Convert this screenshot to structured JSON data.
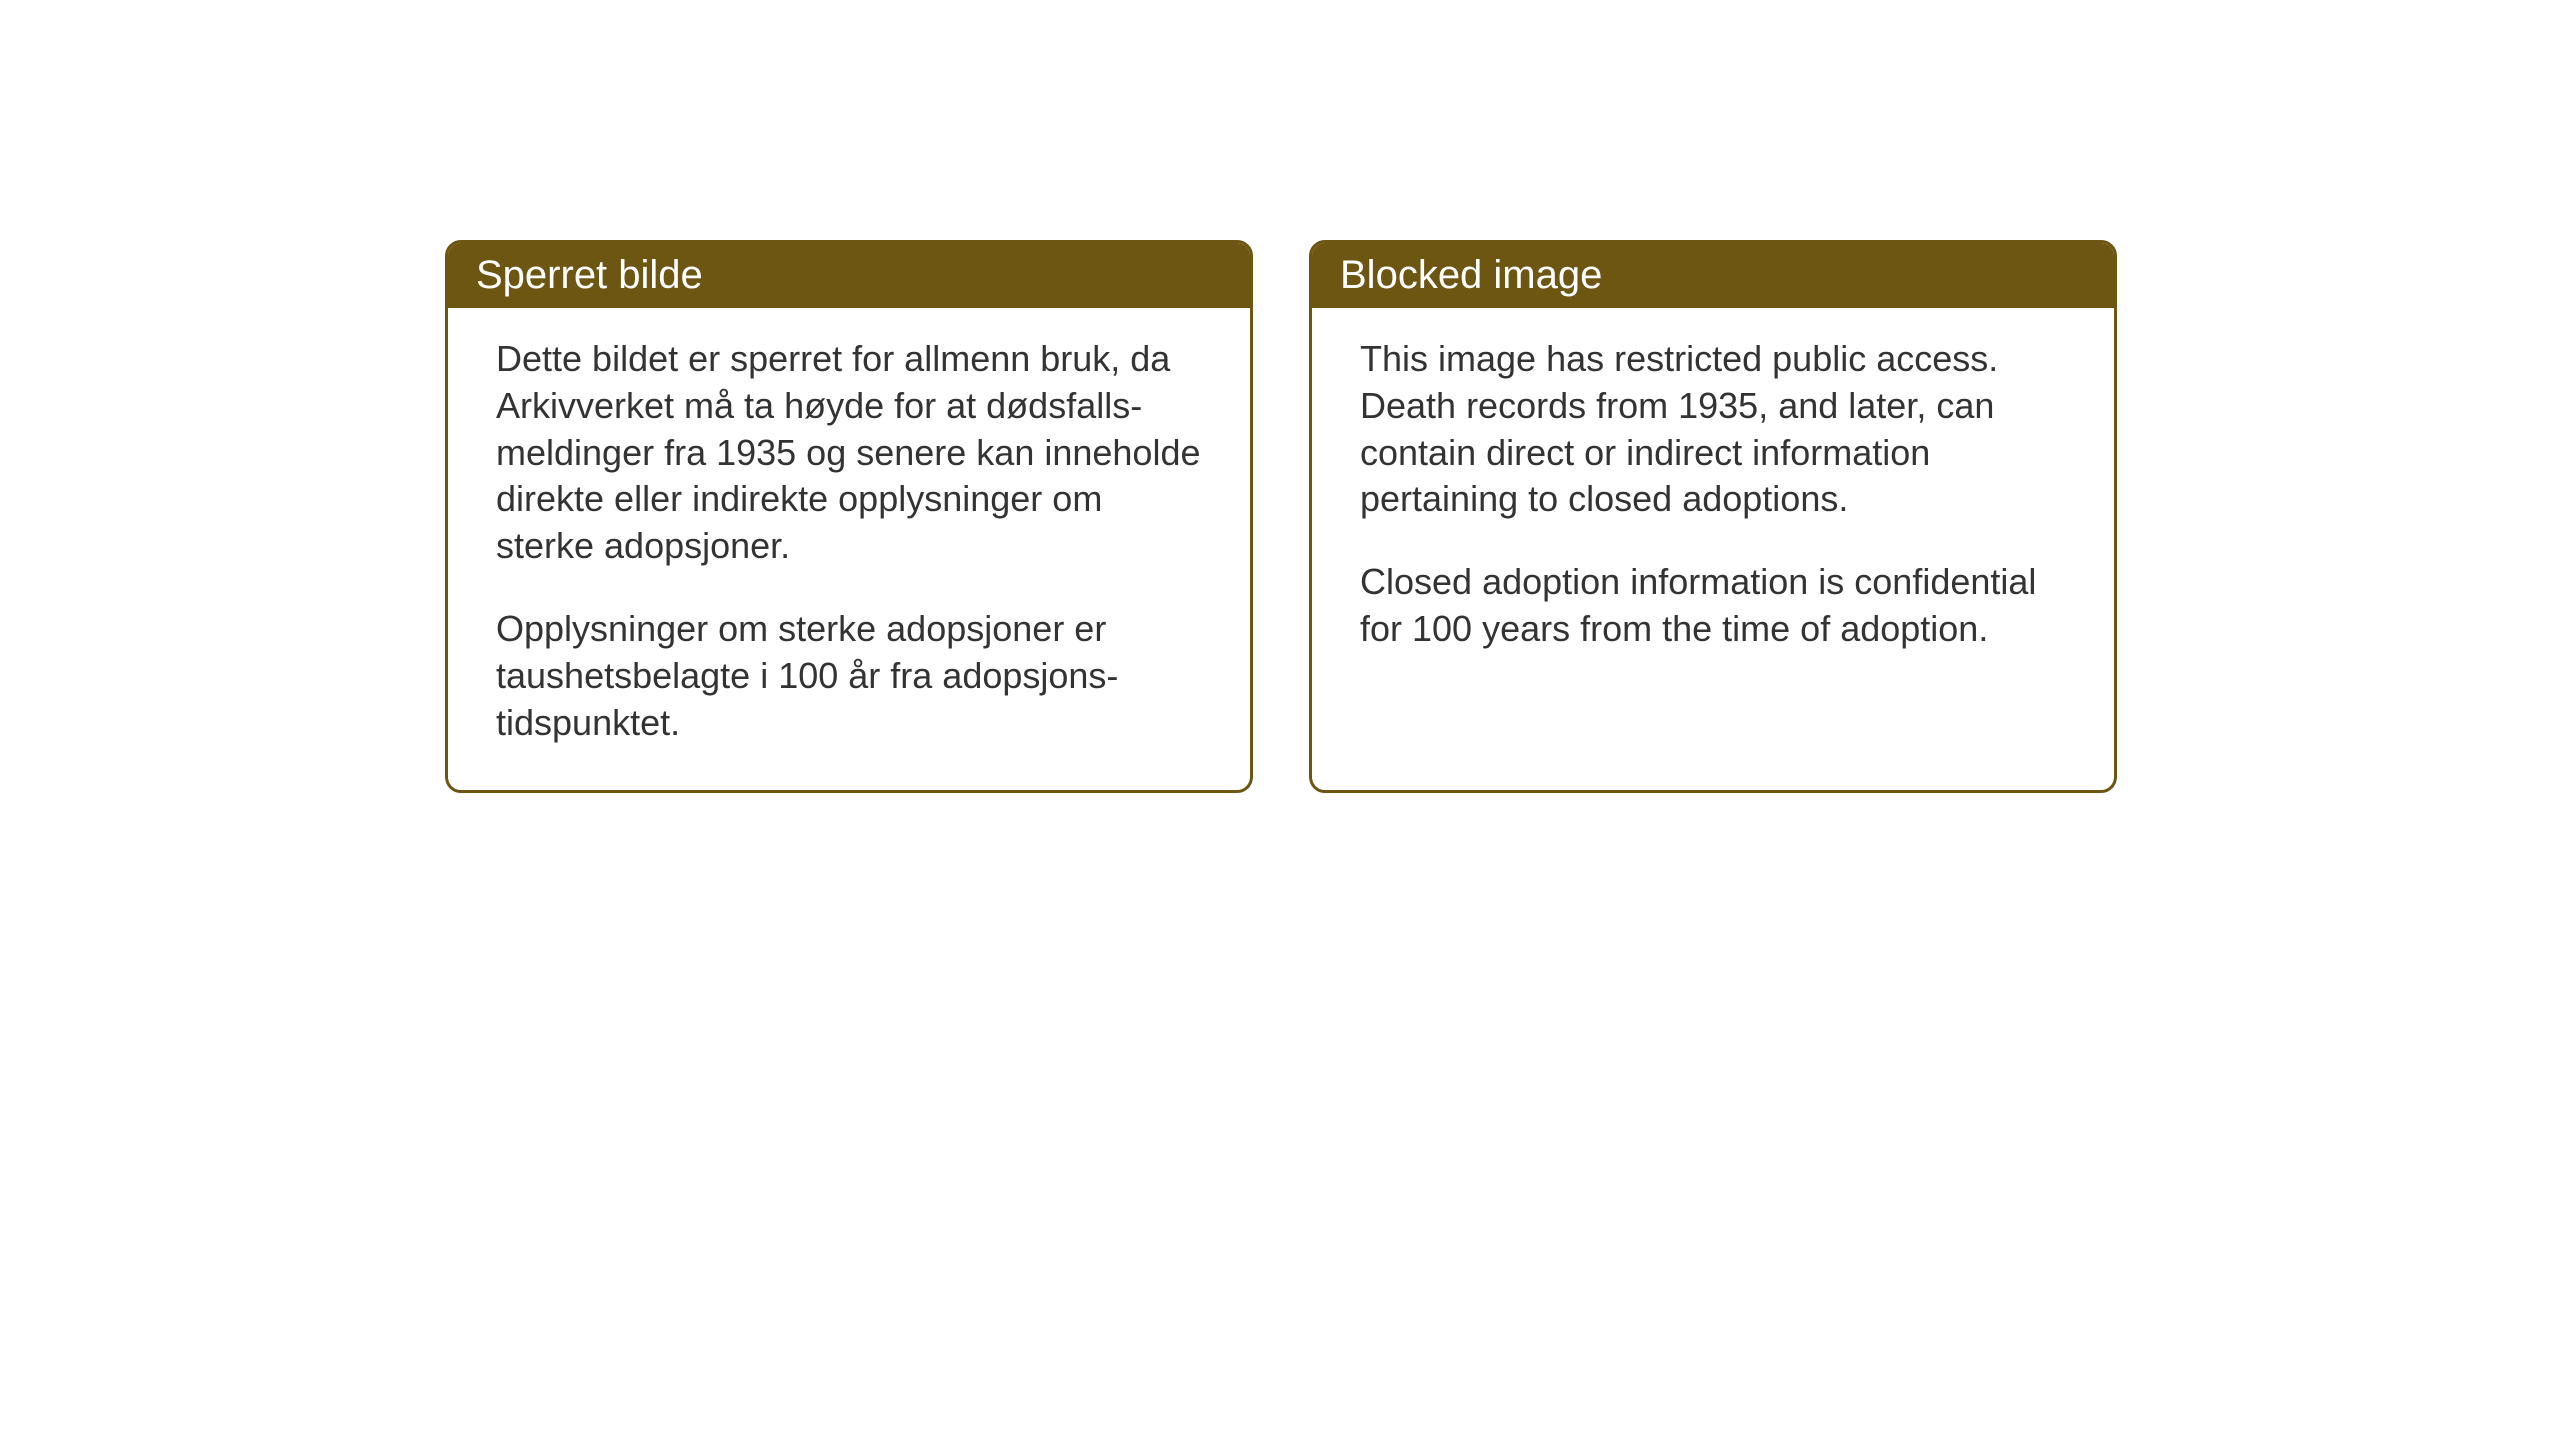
{
  "cards": {
    "norwegian": {
      "title": "Sperret bilde",
      "paragraph1": "Dette bildet er sperret for allmenn bruk, da Arkivverket må ta høyde for at dødsfalls-meldinger fra 1935 og senere kan inneholde direkte eller indirekte opplysninger om sterke adopsjoner.",
      "paragraph2": "Opplysninger om sterke adopsjoner er taushetsbelagte i 100 år fra adopsjons-tidspunktet."
    },
    "english": {
      "title": "Blocked image",
      "paragraph1": "This image has restricted public access. Death records from 1935, and later, can contain direct or indirect information pertaining to closed adoptions.",
      "paragraph2": "Closed adoption information is confidential for 100 years from the time of adoption."
    }
  },
  "styling": {
    "header_background_color": "#6d5512",
    "header_text_color": "#ffffff",
    "border_color": "#6d5512",
    "body_text_color": "#333333",
    "background_color": "#ffffff",
    "title_fontsize": 40,
    "body_fontsize": 36,
    "border_radius": 16,
    "border_width": 3
  }
}
